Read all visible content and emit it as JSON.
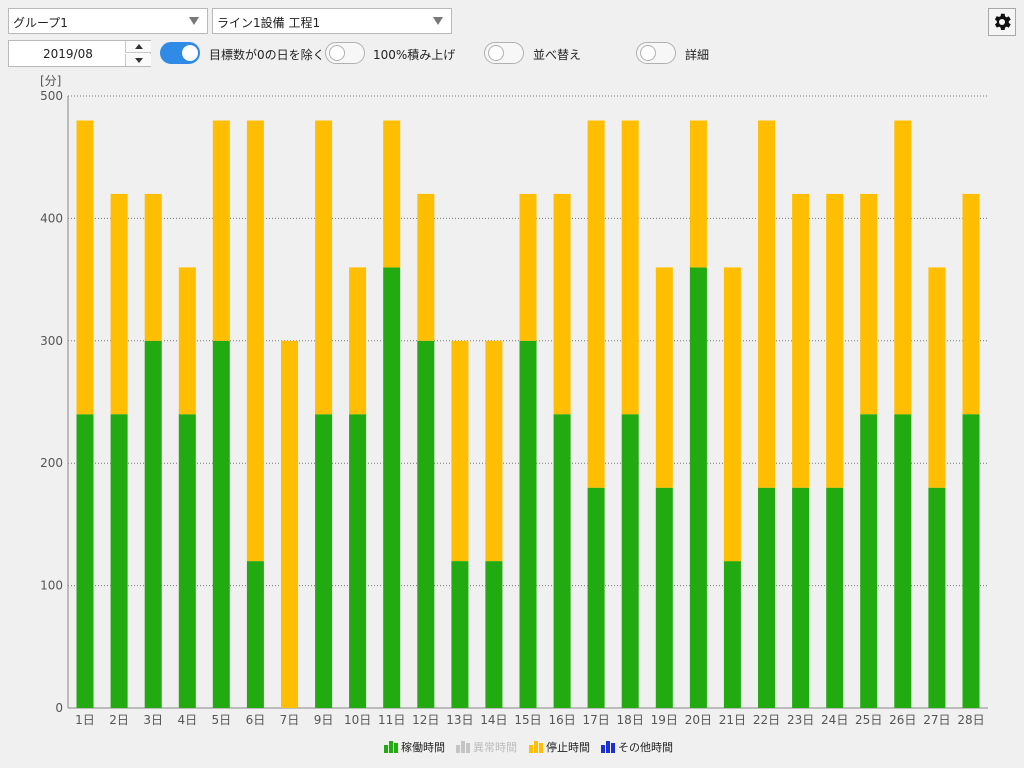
{
  "group_select": {
    "value": "グループ1"
  },
  "equipment_select": {
    "value": "ライン1設備 工程1"
  },
  "date_field": {
    "value": "2019/08"
  },
  "toggles": [
    {
      "label": "目標数が0の日を除く",
      "on": true
    },
    {
      "label": "100%積み上げ",
      "on": false
    },
    {
      "label": "並べ替え",
      "on": false
    },
    {
      "label": "詳細",
      "on": false
    }
  ],
  "colors": {
    "operating": "#22aa11",
    "abnormal": "#bbbbbb",
    "stopped": "#ffbf00",
    "other": "#1a2fd6"
  },
  "chart_data": {
    "type": "bar",
    "stacked": true,
    "ylabel": "[分]",
    "ylim": [
      0,
      500
    ],
    "yticks": [
      0,
      100,
      200,
      300,
      400,
      500
    ],
    "grid": true,
    "legend_position": "bottom",
    "categories": [
      "1日",
      "2日",
      "3日",
      "4日",
      "5日",
      "6日",
      "7日",
      "9日",
      "10日",
      "11日",
      "12日",
      "13日",
      "14日",
      "15日",
      "16日",
      "17日",
      "18日",
      "19日",
      "20日",
      "21日",
      "22日",
      "23日",
      "24日",
      "25日",
      "26日",
      "27日",
      "28日"
    ],
    "series": [
      {
        "name": "稼働時間",
        "color": "#22aa11",
        "values": [
          240,
          240,
          300,
          240,
          300,
          120,
          0,
          240,
          240,
          360,
          300,
          120,
          120,
          300,
          240,
          180,
          240,
          180,
          360,
          120,
          180,
          180,
          180,
          240,
          240,
          180,
          240
        ]
      },
      {
        "name": "異常時間",
        "color": "#bbbbbb",
        "disabled": true,
        "values": [
          0,
          0,
          0,
          0,
          0,
          0,
          0,
          0,
          0,
          0,
          0,
          0,
          0,
          0,
          0,
          0,
          0,
          0,
          0,
          0,
          0,
          0,
          0,
          0,
          0,
          0,
          0
        ]
      },
      {
        "name": "停止時間",
        "color": "#ffbf00",
        "values": [
          240,
          180,
          120,
          120,
          180,
          360,
          300,
          240,
          120,
          120,
          120,
          180,
          180,
          120,
          180,
          300,
          240,
          180,
          120,
          240,
          300,
          240,
          240,
          180,
          240,
          180,
          180
        ]
      },
      {
        "name": "その他時間",
        "color": "#1a2fd6",
        "values": [
          0,
          0,
          0,
          0,
          0,
          0,
          0,
          0,
          0,
          0,
          0,
          0,
          0,
          0,
          0,
          0,
          0,
          0,
          0,
          0,
          0,
          0,
          0,
          0,
          0,
          0,
          0
        ]
      }
    ]
  }
}
